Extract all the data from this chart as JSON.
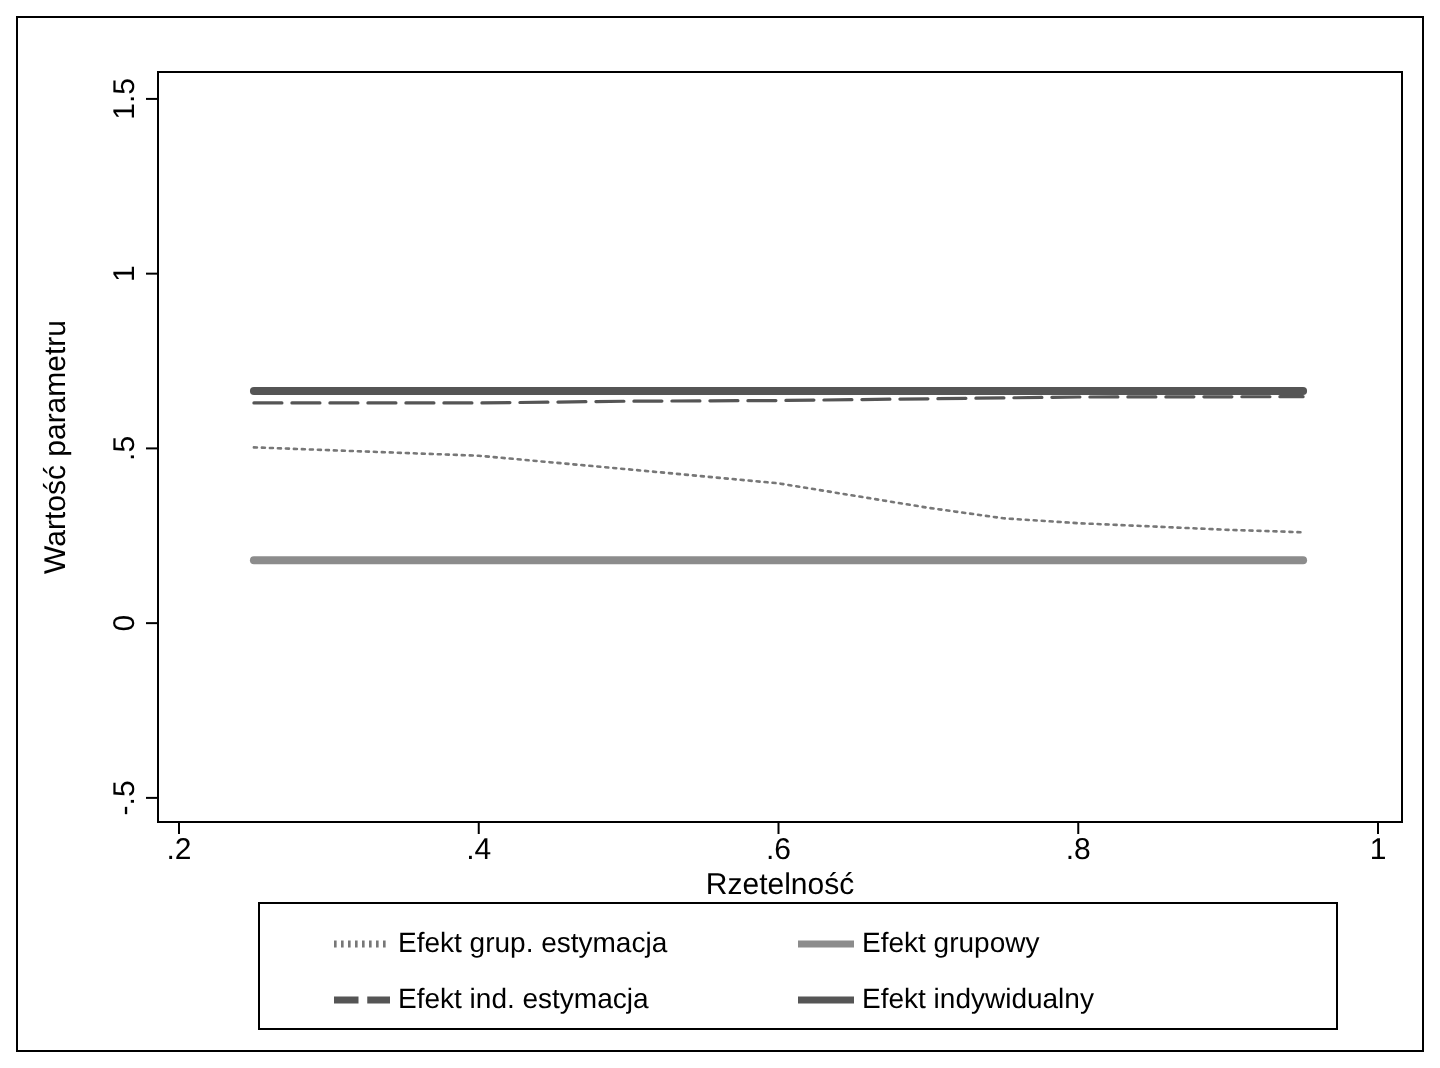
{
  "chart_data": {
    "type": "line",
    "xlabel": "Rzetelność",
    "ylabel": "Wartość parametru",
    "xlim": [
      0.186,
      1.016
    ],
    "ylim": [
      -0.569,
      1.577
    ],
    "xticks": [
      {
        "value": 0.2,
        "label": ".2"
      },
      {
        "value": 0.4,
        "label": ".4"
      },
      {
        "value": 0.6,
        "label": ".6"
      },
      {
        "value": 0.8,
        "label": ".8"
      },
      1
    ],
    "yticks": [
      {
        "value": -0.5,
        "label": "-.5"
      },
      0,
      {
        "value": 0.5,
        "label": ".5"
      },
      1,
      1.5
    ],
    "grid": false,
    "legend": "bottom",
    "series": [
      {
        "name": "Efekt indywidualny",
        "color": "#555555",
        "line_style": "solid",
        "x": [
          0.25,
          0.95
        ],
        "values": [
          0.664,
          0.664
        ]
      },
      {
        "name": "Efekt grupowy",
        "color": "#8c8c8c",
        "line_style": "solid",
        "x": [
          0.25,
          0.95
        ],
        "values": [
          0.18,
          0.18
        ]
      },
      {
        "name": "Efekt ind. estymacja",
        "color": "#555555",
        "line_style": "dashed",
        "x": [
          0.25,
          0.4,
          0.5,
          0.6,
          0.7,
          0.8,
          0.95
        ],
        "values": [
          0.63,
          0.63,
          0.635,
          0.637,
          0.642,
          0.647,
          0.648
        ]
      },
      {
        "name": "Efekt grup. estymacja",
        "color": "#777777",
        "line_style": "dotted",
        "x": [
          0.25,
          0.4,
          0.5,
          0.6,
          0.7,
          0.75,
          0.8,
          0.9,
          0.95
        ],
        "values": [
          0.503,
          0.479,
          0.44,
          0.4,
          0.33,
          0.3,
          0.286,
          0.267,
          0.26
        ]
      }
    ]
  }
}
